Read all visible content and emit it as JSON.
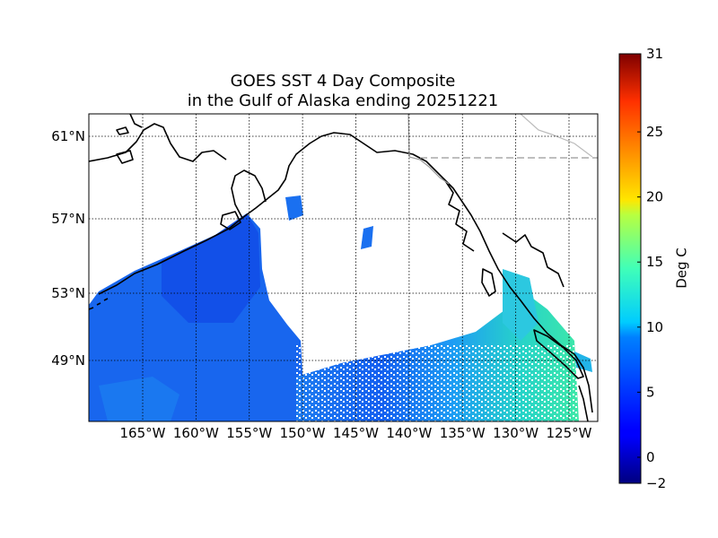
{
  "title": {
    "line1": "GOES SST 4 Day Composite",
    "line2": "in the Gulf of Alaska ending 20251221"
  },
  "map": {
    "lat_ticks": [
      {
        "value": 61,
        "label": "61°N"
      },
      {
        "value": 57,
        "label": "57°N"
      },
      {
        "value": 53,
        "label": "53°N"
      },
      {
        "value": 49,
        "label": "49°N"
      }
    ],
    "lon_ticks": [
      {
        "value": -165,
        "label": "165°W"
      },
      {
        "value": -160,
        "label": "160°W"
      },
      {
        "value": -155,
        "label": "155°W"
      },
      {
        "value": -150,
        "label": "150°W"
      },
      {
        "value": -145,
        "label": "145°W"
      },
      {
        "value": -140,
        "label": "140°W"
      },
      {
        "value": -135,
        "label": "135°W"
      },
      {
        "value": -130,
        "label": "130°W"
      },
      {
        "value": -125,
        "label": "125°W"
      }
    ],
    "water_color": "#ffffff",
    "coastline_color": "#000000",
    "border_color": "#999999"
  },
  "colorbar": {
    "label": "Deg C",
    "min": -2,
    "max": 31,
    "colormap": "jet",
    "ticks": [
      {
        "value": -2,
        "label": "−2"
      },
      {
        "value": 0,
        "label": "0"
      },
      {
        "value": 5,
        "label": "5"
      },
      {
        "value": 10,
        "label": "10"
      },
      {
        "value": 15,
        "label": "15"
      },
      {
        "value": 20,
        "label": "20"
      },
      {
        "value": 25,
        "label": "25"
      },
      {
        "value": 31,
        "label": "31"
      }
    ]
  }
}
